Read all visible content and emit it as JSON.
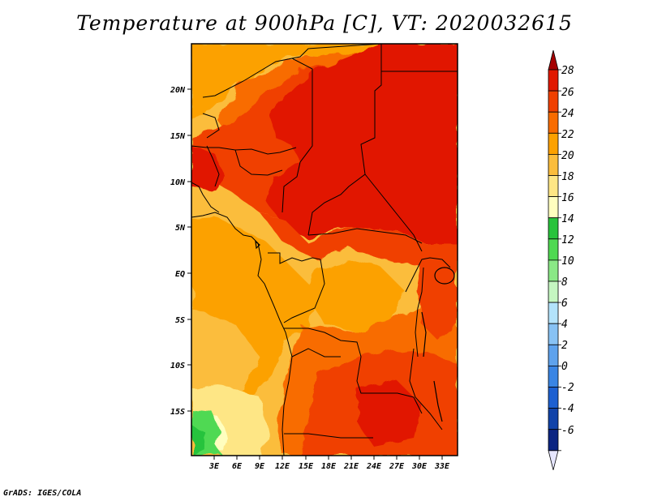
{
  "title": "Temperature at 900hPa [C], VT: 2020032615",
  "footer": "GrADS: IGES/COLA",
  "map": {
    "lat_labels": [
      "20N",
      "15N",
      "10N",
      "5N",
      "EQ",
      "5S",
      "10S",
      "15S"
    ],
    "lon_labels": [
      "3E",
      "6E",
      "9E",
      "12E",
      "15E",
      "18E",
      "21E",
      "24E",
      "27E",
      "30E",
      "33E"
    ]
  },
  "colorbar": {
    "levels": [
      "28",
      "26",
      "24",
      "22",
      "20",
      "18",
      "16",
      "14",
      "12",
      "10",
      "8",
      "6",
      "4",
      "2",
      "0",
      "-2",
      "-4",
      "-6"
    ],
    "colors": [
      "#a50000",
      "#e11800",
      "#f04000",
      "#f86c00",
      "#fca100",
      "#fbbd3c",
      "#fee685",
      "#fffebf",
      "#28c33c",
      "#4fd952",
      "#8ae886",
      "#c5f6c1",
      "#b3e3fb",
      "#88c2f4",
      "#5ea2ed",
      "#3a85e4",
      "#1d60d1",
      "#1143a9",
      "#0b2582",
      "#e6e6ff"
    ]
  }
}
